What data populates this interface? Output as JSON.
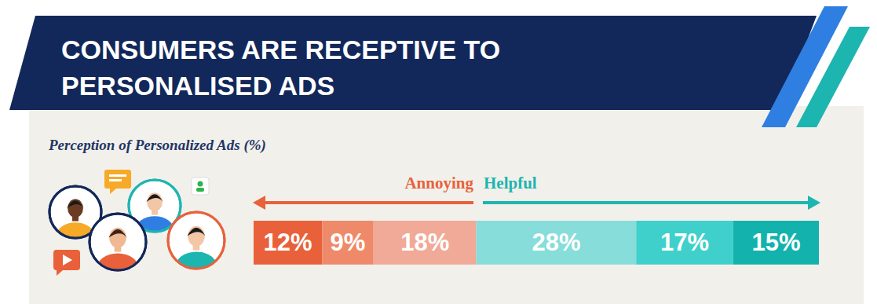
{
  "chart_data": {
    "type": "bar",
    "orientation": "horizontal",
    "stacked": true,
    "title": "CONSUMERS ARE RECEPTIVE TO PERSONALISED ADS",
    "subtitle": "Perception of Personalized Ads (%)",
    "annotations": [
      "Annoying",
      "Helpful"
    ],
    "values": [
      12,
      9,
      18,
      28,
      17,
      15
    ],
    "value_labels": [
      "12%",
      "9%",
      "18%",
      "28%",
      "17%",
      "15%"
    ],
    "colors": [
      "#e8613a",
      "#ee8a6a",
      "#f1a998",
      "#86ddd9",
      "#40d0cb",
      "#14b2ad"
    ],
    "xlim": [
      0,
      99
    ],
    "data_labels": true,
    "tick_labels": false
  }
}
